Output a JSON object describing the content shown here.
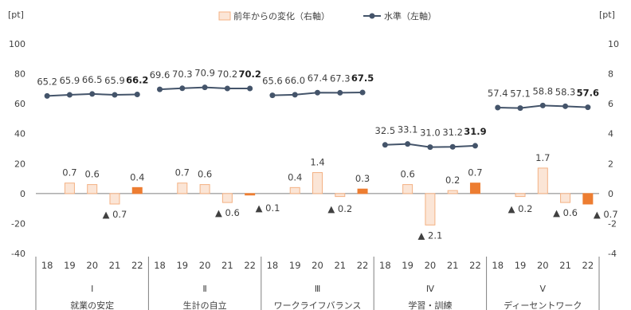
{
  "chart_data": {
    "type": "bar+line",
    "units": {
      "left": "[pt]",
      "right": "[pt]"
    },
    "legend": {
      "bar": "前年からの変化（右軸）",
      "line": "水準（左軸）"
    },
    "left_axis": {
      "ylim": [
        -40,
        100
      ],
      "ticks": [
        "100",
        "80",
        "60",
        "40",
        "20",
        "0",
        "-20",
        "-40"
      ]
    },
    "right_axis": {
      "ylim": [
        -4,
        10
      ],
      "ticks": [
        "10",
        "8",
        "6",
        "4",
        "2",
        "0",
        "-2",
        "-4"
      ]
    },
    "categories": [
      "18",
      "19",
      "20",
      "21",
      "22"
    ],
    "groups": [
      {
        "number": "Ⅰ",
        "name": "就業の安定",
        "level": [
          65.2,
          65.9,
          66.5,
          65.9,
          66.2
        ],
        "level_labels": [
          "65.2",
          "65.9",
          "66.5",
          "65.9",
          "66.2"
        ],
        "change": [
          null,
          0.7,
          0.6,
          -0.7,
          0.4
        ],
        "change_labels": [
          "",
          "0.7",
          "0.6",
          "▲ 0.7",
          "0.4"
        ]
      },
      {
        "number": "Ⅱ",
        "name": "生計の自立",
        "level": [
          69.6,
          70.3,
          70.9,
          70.2,
          70.2
        ],
        "level_labels": [
          "69.6",
          "70.3",
          "70.9",
          "70.2",
          "70.2"
        ],
        "change": [
          null,
          0.7,
          0.6,
          -0.6,
          -0.1
        ],
        "change_labels": [
          "",
          "0.7",
          "0.6",
          "▲ 0.6",
          "▲ 0.1"
        ]
      },
      {
        "number": "Ⅲ",
        "name": "ワークライフバランス",
        "level": [
          65.6,
          66.0,
          67.4,
          67.3,
          67.5
        ],
        "level_labels": [
          "65.6",
          "66.0",
          "67.4",
          "67.3",
          "67.5"
        ],
        "change": [
          null,
          0.4,
          1.4,
          -0.2,
          0.3
        ],
        "change_labels": [
          "",
          "0.4",
          "1.4",
          "▲ 0.2",
          "0.3"
        ]
      },
      {
        "number": "Ⅳ",
        "name": "学習・訓練",
        "level": [
          32.5,
          33.1,
          31.0,
          31.2,
          31.9
        ],
        "level_labels": [
          "32.5",
          "33.1",
          "31.0",
          "31.2",
          "31.9"
        ],
        "change": [
          null,
          0.6,
          -2.1,
          0.2,
          0.7
        ],
        "change_labels": [
          "",
          "0.6",
          "▲ 2.1",
          "0.2",
          "0.7"
        ]
      },
      {
        "number": "Ⅴ",
        "name": "ディーセントワーク",
        "level": [
          57.4,
          57.1,
          58.8,
          58.3,
          57.6
        ],
        "level_labels": [
          "57.4",
          "57.1",
          "58.8",
          "58.3",
          "57.6"
        ],
        "change": [
          null,
          -0.2,
          1.7,
          -0.6,
          -0.7
        ],
        "change_labels": [
          "",
          "▲ 0.2",
          "1.7",
          "▲ 0.6",
          "▲ 0.7"
        ]
      }
    ],
    "colors": {
      "bar_fill": "#fbe5d6",
      "bar_stroke": "#f4b183",
      "bar_latest": "#ed7d31",
      "line": "#44546a",
      "axis": "#7f7f7f"
    }
  }
}
